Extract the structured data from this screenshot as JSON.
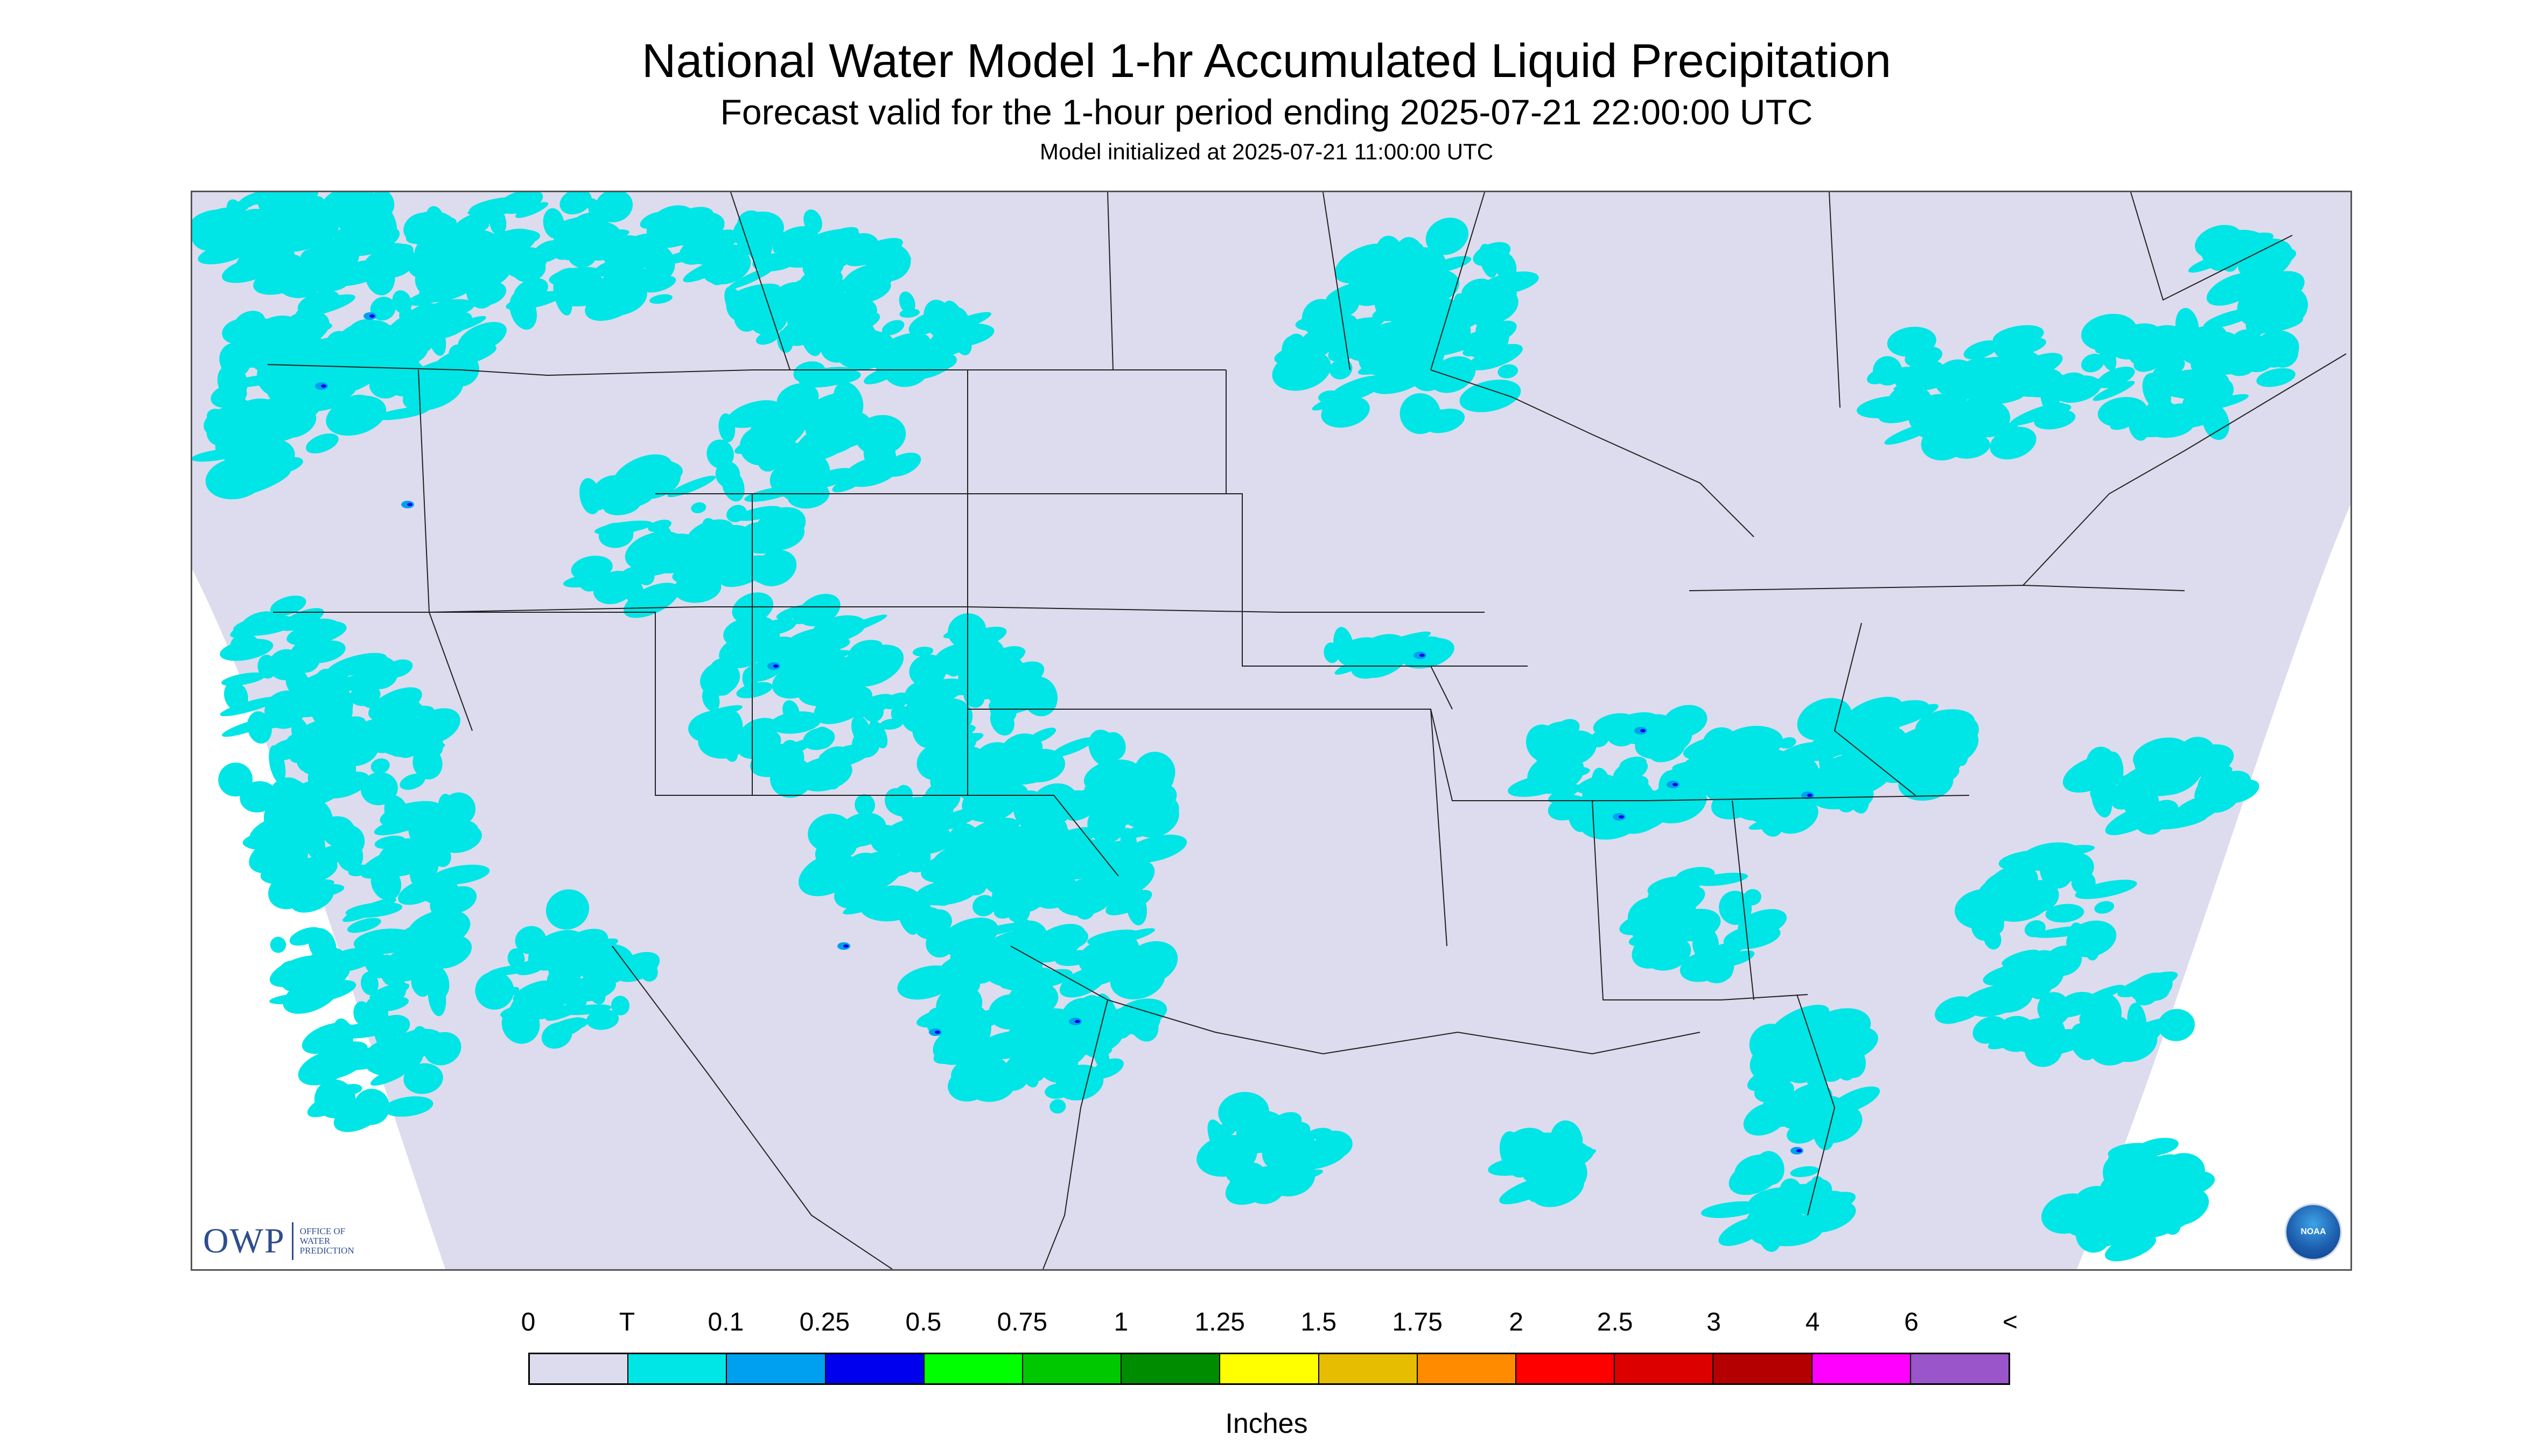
{
  "header": {
    "title": "National Water Model 1-hr Accumulated Liquid Precipitation",
    "subtitle": "Forecast valid for the 1-hour period ending 2025-07-21 22:00:00 UTC",
    "init_note": "Model initialized at 2025-07-21 11:00:00 UTC"
  },
  "map": {
    "background_color": "#dcdcee",
    "outside_color": "#ffffff",
    "precip_color": "#00e5e5",
    "light_color": "#00a0f0",
    "heavy_color": "#0000ee",
    "icons": [
      "owp-logo",
      "noaa-logo"
    ]
  },
  "branding": {
    "owp_mark": "OWP",
    "owp_name": "OFFICE OF\nWATER\nPREDICTION",
    "noaa_label": "NOAA"
  },
  "legend": {
    "labels": [
      "0",
      "T",
      "0.1",
      "0.25",
      "0.5",
      "0.75",
      "1",
      "1.25",
      "1.5",
      "1.75",
      "2",
      "2.5",
      "3",
      "4",
      "6",
      "<"
    ],
    "colors": [
      "#dcdcee",
      "#00e5e5",
      "#00a0f0",
      "#0000ee",
      "#00ff00",
      "#00c800",
      "#008c00",
      "#ffff00",
      "#e6bd00",
      "#ff8c00",
      "#ff0000",
      "#dc0000",
      "#b40000",
      "#ff00ff",
      "#9955c9"
    ],
    "units": "Inches"
  }
}
